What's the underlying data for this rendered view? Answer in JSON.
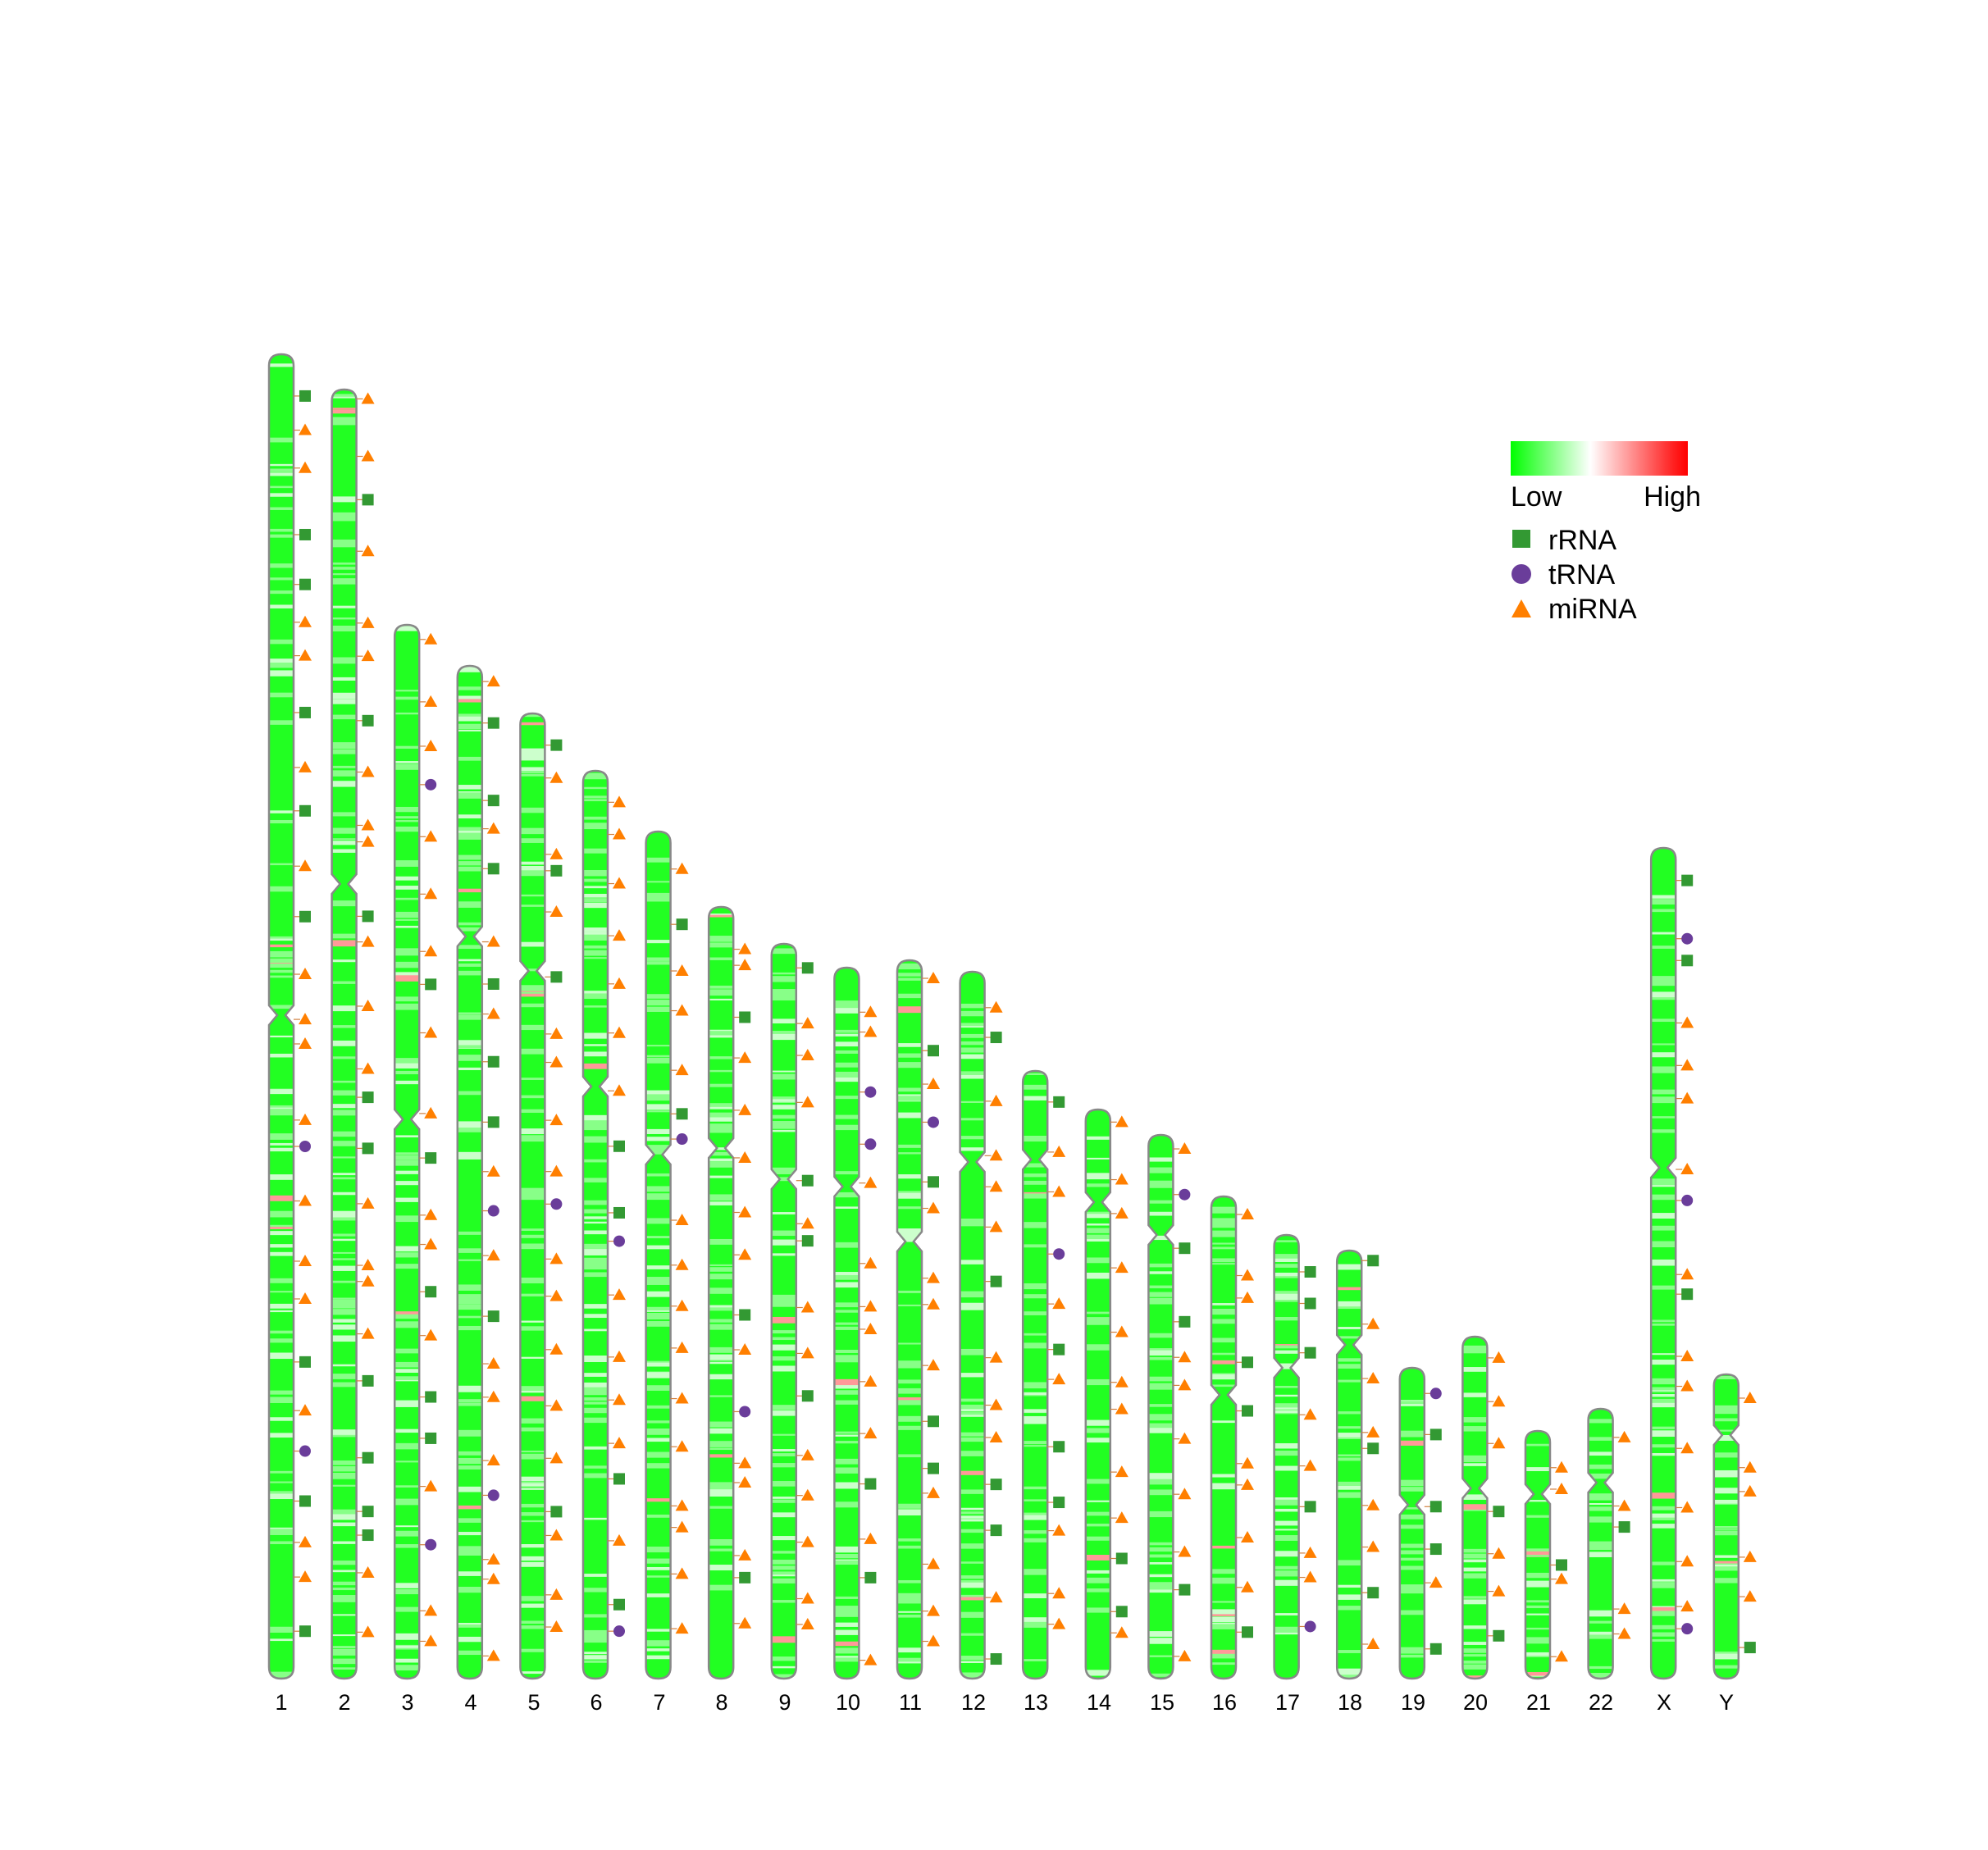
{
  "chromosomes": [
    {
      "id": "1",
      "label": "1"
    },
    {
      "id": "2",
      "label": "2"
    },
    {
      "id": "3",
      "label": "3"
    },
    {
      "id": "4",
      "label": "4"
    },
    {
      "id": "5",
      "label": "5"
    },
    {
      "id": "6",
      "label": "6"
    },
    {
      "id": "7",
      "label": "7"
    },
    {
      "id": "8",
      "label": "8"
    },
    {
      "id": "9",
      "label": "9"
    },
    {
      "id": "10",
      "label": "10"
    },
    {
      "id": "11",
      "label": "11"
    },
    {
      "id": "12",
      "label": "12"
    },
    {
      "id": "13",
      "label": "13"
    },
    {
      "id": "14",
      "label": "14"
    },
    {
      "id": "15",
      "label": "15"
    },
    {
      "id": "16",
      "label": "16"
    },
    {
      "id": "17",
      "label": "17"
    },
    {
      "id": "18",
      "label": "18"
    },
    {
      "id": "19",
      "label": "19"
    },
    {
      "id": "20",
      "label": "20"
    },
    {
      "id": "21",
      "label": "21"
    },
    {
      "id": "22",
      "label": "22"
    },
    {
      "id": "X",
      "label": "X"
    },
    {
      "id": "Y",
      "label": "Y"
    }
  ],
  "legend": {
    "gradient": {
      "low_label": "Low",
      "high_label": "High",
      "colors": [
        "#00ff00",
        "#ffffff",
        "#ff0000"
      ]
    },
    "items": [
      {
        "label": "rRNA",
        "shape": "square",
        "color": "#339933"
      },
      {
        "label": "tRNA",
        "shape": "circle",
        "color": "#6a3d9a"
      },
      {
        "label": "miRNA",
        "shape": "triangle",
        "color": "#ff7f00"
      }
    ]
  },
  "colors": {
    "outline": "#888888",
    "connector": "#d08040"
  }
}
